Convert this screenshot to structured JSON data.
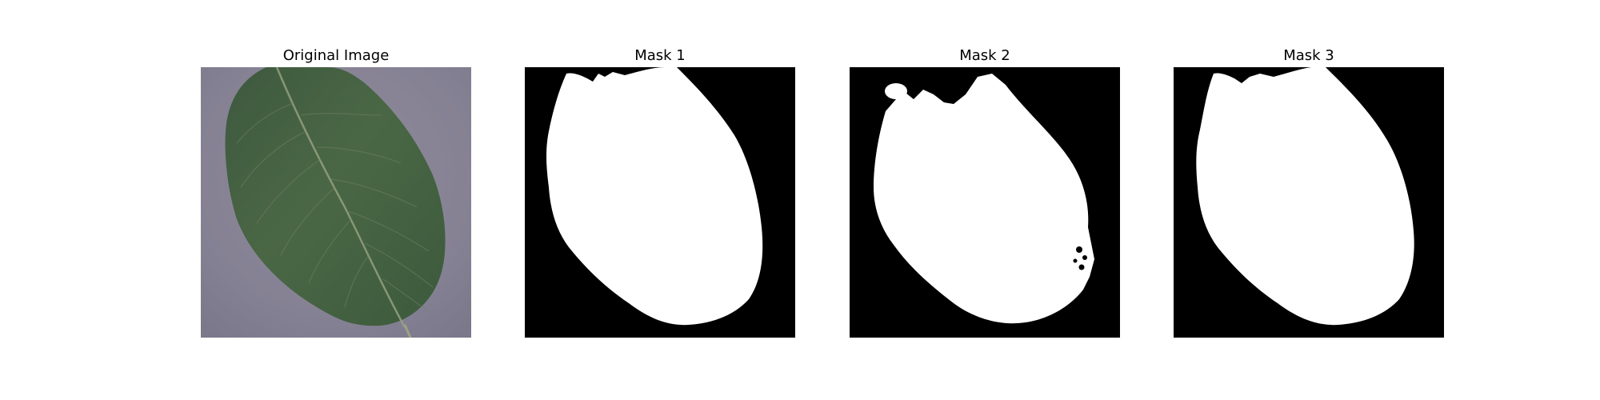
{
  "figure": {
    "panels": [
      {
        "title": "Original Image",
        "kind": "photo",
        "subject": "leaf-image"
      },
      {
        "title": "Mask 1",
        "kind": "binary-mask",
        "subject": "mask-image"
      },
      {
        "title": "Mask 2",
        "kind": "binary-mask",
        "subject": "mask-image"
      },
      {
        "title": "Mask 3",
        "kind": "binary-mask",
        "subject": "mask-image"
      }
    ]
  },
  "colors": {
    "background": "#ffffff",
    "mask_foreground": "#ffffff",
    "mask_background": "#000000",
    "leaf_dark": "#3f5a3e",
    "leaf_mid": "#4f6c4a",
    "surface": "#8a8797"
  }
}
